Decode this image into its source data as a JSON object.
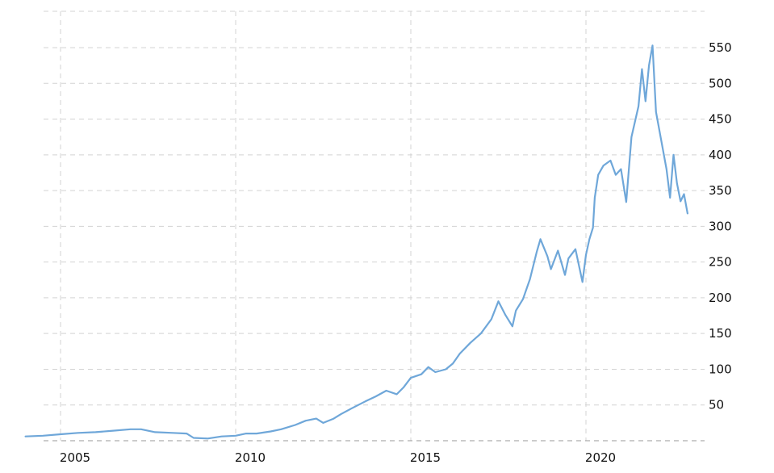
{
  "chart_data": {
    "type": "line",
    "title": "",
    "xlabel": "",
    "ylabel": "",
    "grid": true,
    "line_color": "#6fa7d9",
    "grid_color": "#d3d3d3",
    "xlim": [
      2004.0,
      2022.9
    ],
    "ylim": [
      0,
      575
    ],
    "x_ticks": [
      {
        "value": 2005,
        "label": "2005"
      },
      {
        "value": 2010,
        "label": "2010"
      },
      {
        "value": 2015,
        "label": "2015"
      },
      {
        "value": 2020,
        "label": "2020"
      }
    ],
    "y_ticks": [
      {
        "value": 50,
        "label": "50"
      },
      {
        "value": 100,
        "label": "100"
      },
      {
        "value": 150,
        "label": "150"
      },
      {
        "value": 200,
        "label": "200"
      },
      {
        "value": 250,
        "label": "250"
      },
      {
        "value": 300,
        "label": "300"
      },
      {
        "value": 350,
        "label": "350"
      },
      {
        "value": 400,
        "label": "400"
      },
      {
        "value": 450,
        "label": "450"
      },
      {
        "value": 500,
        "label": "500"
      },
      {
        "value": 550,
        "label": "550"
      }
    ],
    "series": [
      {
        "points": [
          [
            2004.0,
            6
          ],
          [
            2004.5,
            7
          ],
          [
            2005.0,
            9
          ],
          [
            2005.5,
            11
          ],
          [
            2006.0,
            12
          ],
          [
            2006.5,
            14
          ],
          [
            2007.0,
            16
          ],
          [
            2007.3,
            16
          ],
          [
            2007.7,
            12
          ],
          [
            2008.2,
            11
          ],
          [
            2008.6,
            10
          ],
          [
            2008.8,
            4
          ],
          [
            2009.2,
            3
          ],
          [
            2009.6,
            6
          ],
          [
            2010.0,
            7
          ],
          [
            2010.3,
            10
          ],
          [
            2010.6,
            10
          ],
          [
            2011.0,
            13
          ],
          [
            2011.3,
            16
          ],
          [
            2011.7,
            22
          ],
          [
            2012.0,
            28
          ],
          [
            2012.3,
            31
          ],
          [
            2012.5,
            25
          ],
          [
            2012.8,
            31
          ],
          [
            2013.0,
            37
          ],
          [
            2013.3,
            45
          ],
          [
            2013.7,
            55
          ],
          [
            2014.0,
            62
          ],
          [
            2014.3,
            70
          ],
          [
            2014.6,
            65
          ],
          [
            2014.8,
            75
          ],
          [
            2015.0,
            88
          ],
          [
            2015.3,
            93
          ],
          [
            2015.5,
            103
          ],
          [
            2015.7,
            96
          ],
          [
            2016.0,
            100
          ],
          [
            2016.2,
            108
          ],
          [
            2016.4,
            122
          ],
          [
            2016.7,
            137
          ],
          [
            2017.0,
            150
          ],
          [
            2017.3,
            170
          ],
          [
            2017.5,
            195
          ],
          [
            2017.7,
            176
          ],
          [
            2017.9,
            160
          ],
          [
            2018.0,
            182
          ],
          [
            2018.2,
            198
          ],
          [
            2018.4,
            226
          ],
          [
            2018.6,
            265
          ],
          [
            2018.7,
            282
          ],
          [
            2018.9,
            258
          ],
          [
            2019.0,
            240
          ],
          [
            2019.2,
            266
          ],
          [
            2019.4,
            232
          ],
          [
            2019.5,
            255
          ],
          [
            2019.7,
            268
          ],
          [
            2019.9,
            222
          ],
          [
            2020.0,
            260
          ],
          [
            2020.1,
            282
          ],
          [
            2020.2,
            298
          ],
          [
            2020.25,
            340
          ],
          [
            2020.35,
            372
          ],
          [
            2020.5,
            385
          ],
          [
            2020.7,
            392
          ],
          [
            2020.85,
            372
          ],
          [
            2021.0,
            380
          ],
          [
            2021.15,
            334
          ],
          [
            2021.3,
            425
          ],
          [
            2021.5,
            468
          ],
          [
            2021.6,
            520
          ],
          [
            2021.7,
            475
          ],
          [
            2021.8,
            525
          ],
          [
            2021.9,
            553
          ],
          [
            2022.0,
            460
          ],
          [
            2022.15,
            420
          ],
          [
            2022.3,
            380
          ],
          [
            2022.4,
            340
          ],
          [
            2022.5,
            400
          ],
          [
            2022.6,
            360
          ],
          [
            2022.7,
            335
          ],
          [
            2022.8,
            345
          ],
          [
            2022.9,
            318
          ]
        ]
      }
    ]
  }
}
